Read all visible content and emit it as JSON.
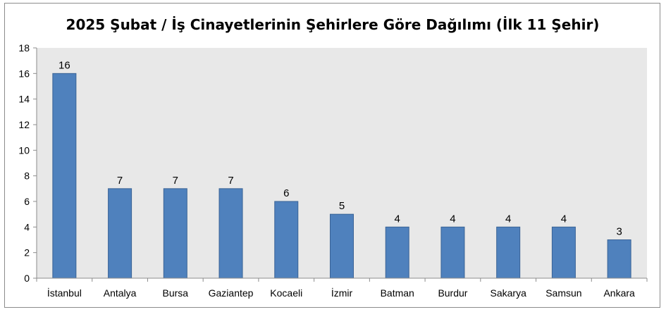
{
  "chart_data": {
    "type": "bar",
    "title": "2025 Şubat / İş Cinayetlerinin Şehirlere Göre Dağılımı (İlk 11 Şehir)",
    "xlabel": "",
    "ylabel": "",
    "categories": [
      "İstanbul",
      "Antalya",
      "Bursa",
      "Gaziantep",
      "Kocaeli",
      "İzmir",
      "Batman",
      "Burdur",
      "Sakarya",
      "Samsun",
      "Ankara"
    ],
    "values": [
      16,
      7,
      7,
      7,
      6,
      5,
      4,
      4,
      4,
      4,
      3
    ],
    "data_labels": [
      "16",
      "7",
      "7",
      "7",
      "6",
      "5",
      "4",
      "4",
      "4",
      "4",
      "3"
    ],
    "ylim": [
      0,
      18
    ],
    "yticks": [
      0,
      2,
      4,
      6,
      8,
      10,
      12,
      14,
      16,
      18
    ],
    "ytick_labels": [
      "0",
      "2",
      "4",
      "6",
      "8",
      "10",
      "12",
      "14",
      "16",
      "18"
    ],
    "grid": false,
    "legend": "none",
    "colors": {
      "bar": "#4f81bd",
      "bar_edge": "#3a6396",
      "plot_background": "#e8e8e8",
      "axis": "#8c8c8c"
    }
  }
}
